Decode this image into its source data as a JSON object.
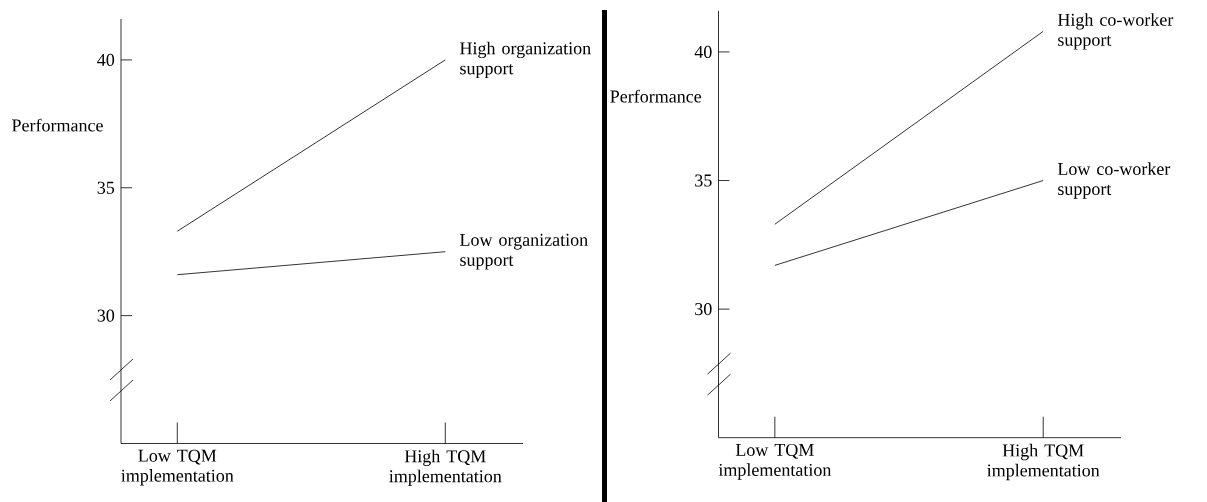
{
  "chart_data": [
    {
      "type": "line",
      "ylabel": "Performance",
      "categories": [
        "Low TQM implementation",
        "High TQM implementation"
      ],
      "ylim": [
        25,
        41.6
      ],
      "yticks": [
        30,
        35,
        40
      ],
      "marker": "none",
      "series": [
        {
          "name": "High organization support",
          "color": "#000000",
          "values": [
            33.3,
            40.0
          ]
        },
        {
          "name": "Low organization support",
          "color": "#000000",
          "values": [
            31.6,
            32.5
          ]
        }
      ]
    },
    {
      "type": "line",
      "ylabel": "Performance",
      "categories": [
        "Low TQM implementation",
        "High TQM implementation"
      ],
      "ylim": [
        25,
        41.6
      ],
      "yticks": [
        30,
        35,
        40
      ],
      "marker": "none",
      "series": [
        {
          "name": "High co-worker support",
          "color": "#000000",
          "values": [
            33.3,
            40.8
          ]
        },
        {
          "name": "Low co-worker support",
          "color": "#000000",
          "values": [
            31.7,
            35.0
          ]
        }
      ]
    }
  ]
}
